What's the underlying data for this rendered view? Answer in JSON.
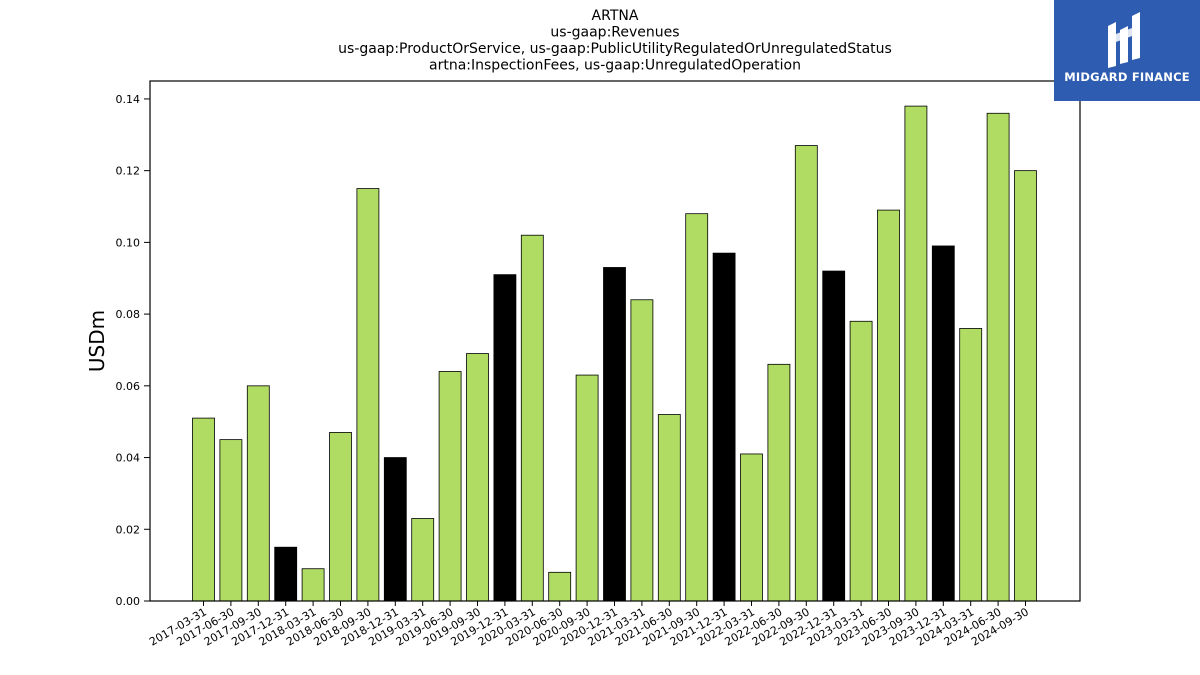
{
  "chart_data": {
    "type": "bar",
    "title_lines": [
      "ARTNA",
      "us-gaap:Revenues",
      "us-gaap:ProductOrService, us-gaap:PublicUtilityRegulatedOrUnregulatedStatus",
      "artna:InspectionFees, us-gaap:UnregulatedOperation"
    ],
    "xlabel": "",
    "ylabel": "USDm",
    "ylim": [
      0,
      0.145
    ],
    "yticks": [
      "0.00",
      "0.02",
      "0.04",
      "0.06",
      "0.08",
      "0.10",
      "0.12",
      "0.14"
    ],
    "grid": false,
    "colors": {
      "quarter": "#b0dc64",
      "year_end": "#000000",
      "edge": "#000000"
    },
    "categories": [
      "2017-03-31",
      "2017-06-30",
      "2017-09-30",
      "2017-12-31",
      "2018-03-31",
      "2018-06-30",
      "2018-09-30",
      "2018-12-31",
      "2019-03-31",
      "2019-06-30",
      "2019-09-30",
      "2019-12-31",
      "2020-03-31",
      "2020-06-30",
      "2020-09-30",
      "2020-12-31",
      "2021-03-31",
      "2021-06-30",
      "2021-09-30",
      "2021-12-31",
      "2022-03-31",
      "2022-06-30",
      "2022-09-30",
      "2022-12-31",
      "2023-03-31",
      "2023-06-30",
      "2023-09-30",
      "2023-12-31",
      "2024-03-31",
      "2024-06-30",
      "2024-09-30"
    ],
    "values": [
      0.051,
      0.045,
      0.06,
      0.015,
      0.009,
      0.047,
      0.115,
      0.04,
      0.023,
      0.064,
      0.069,
      0.091,
      0.102,
      0.008,
      0.063,
      0.093,
      0.084,
      0.052,
      0.108,
      0.097,
      0.041,
      0.066,
      0.127,
      0.092,
      0.078,
      0.109,
      0.138,
      0.099,
      0.076,
      0.136,
      0.12
    ],
    "highlight": [
      false,
      false,
      false,
      true,
      false,
      false,
      false,
      true,
      false,
      false,
      false,
      true,
      false,
      false,
      false,
      true,
      false,
      false,
      false,
      true,
      false,
      false,
      false,
      true,
      false,
      false,
      false,
      true,
      false,
      false,
      false
    ]
  },
  "logo": {
    "text": "MIDGARD FINANCE",
    "background": "#2e5cb0"
  }
}
